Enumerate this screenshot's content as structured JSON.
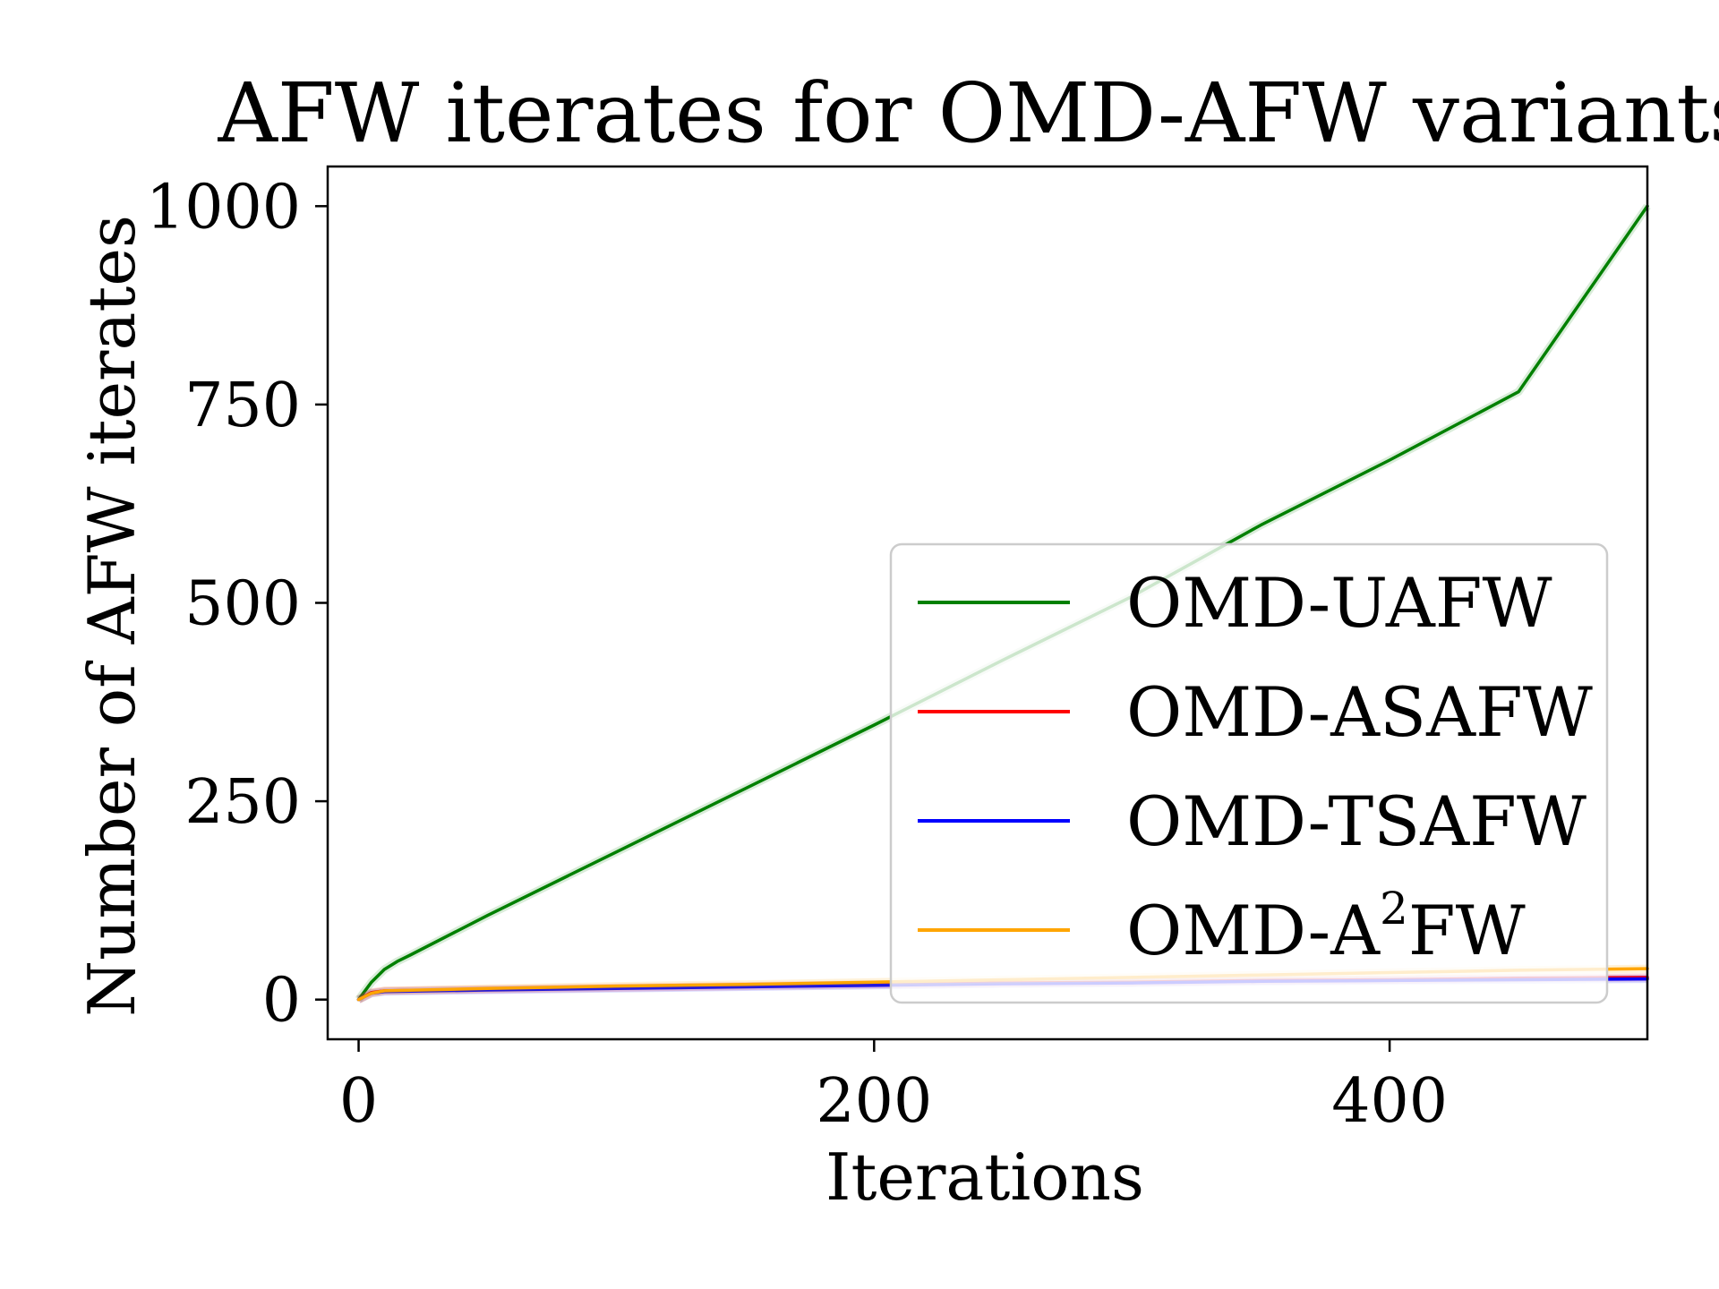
{
  "chart_data": {
    "type": "line",
    "title": "AFW iterates for OMD-AFW variants",
    "xlabel": "Iterations",
    "ylabel": "Number of AFW iterates",
    "xlim": [
      -12,
      500
    ],
    "ylim": [
      -50,
      1050
    ],
    "xticks": [
      0,
      200,
      400
    ],
    "yticks": [
      0,
      250,
      500,
      750,
      1000
    ],
    "grid": false,
    "legend_position": "center-right",
    "series": [
      {
        "name": "OMD-UAFW",
        "color": "#008000",
        "x": [
          0,
          5,
          10,
          15,
          20,
          50,
          100,
          150,
          200,
          250,
          300,
          350,
          400,
          450,
          500
        ],
        "y": [
          0,
          22,
          38,
          48,
          56,
          106,
          186,
          266,
          346,
          428,
          508,
          598,
          680,
          766,
          1000
        ]
      },
      {
        "name": "OMD-ASAFW",
        "color": "#ff0000",
        "x": [
          0,
          5,
          10,
          50,
          100,
          150,
          200,
          250,
          300,
          350,
          400,
          450,
          500
        ],
        "y": [
          0,
          9,
          11,
          13,
          15,
          17,
          19,
          21,
          22,
          24,
          25,
          27,
          28
        ]
      },
      {
        "name": "OMD-TSAFW",
        "color": "#0000ff",
        "x": [
          0,
          5,
          10,
          50,
          100,
          150,
          200,
          250,
          300,
          350,
          400,
          450,
          500
        ],
        "y": [
          0,
          8,
          10,
          12,
          14,
          16,
          18,
          20,
          21,
          23,
          24,
          25,
          26
        ]
      },
      {
        "name": "OMD-A²FW",
        "name_base": "OMD-A",
        "name_sup": "2",
        "name_tail": "FW",
        "color": "#ffa500",
        "x": [
          0,
          5,
          10,
          50,
          100,
          150,
          200,
          250,
          300,
          350,
          400,
          450,
          500
        ],
        "y": [
          0,
          8,
          11,
          14,
          17,
          19,
          22,
          25,
          28,
          31,
          34,
          37,
          39
        ]
      }
    ]
  }
}
